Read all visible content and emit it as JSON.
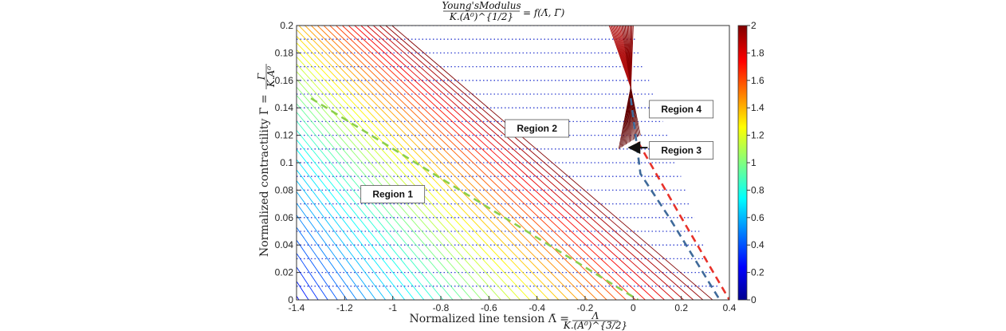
{
  "chart_data": {
    "type": "line",
    "title": "Young'sModulus / K.(A⁰)^{1/2} = f(Λ̄, Γ̄)",
    "title_parts": {
      "numerator": "Young'sModulus",
      "denominator": "K.(A⁰)^{1/2}",
      "rhs": "= f(Λ̄, Γ̄)"
    },
    "xlabel": "Normalized line tension  Λ̄ = Λ / K.(A⁰)^{3/2}",
    "xlabel_parts": {
      "text": "Normalized line tension  Λ̄ =",
      "numerator": "Λ",
      "denominator": "K.(A⁰)^{3/2}"
    },
    "ylabel": "Normalized contractility  Γ̄ = Γ / K.A⁰",
    "ylabel_parts": {
      "text": "Normalized contractility  Γ̄ =",
      "numerator": "Γ",
      "denominator": "K.A⁰"
    },
    "xlim": [
      -1.4,
      0.4
    ],
    "ylim": [
      0,
      0.2
    ],
    "xticks": [
      -1.4,
      -1.2,
      -1,
      -0.8,
      -0.6,
      -0.4,
      -0.2,
      0,
      0.2,
      0.4
    ],
    "xtick_labels": [
      "-1.4",
      "-1.2",
      "-1",
      "-0.8",
      "-0.6",
      "-0.4",
      "-0.2",
      "0",
      "0.2",
      "0.4"
    ],
    "yticks": [
      0,
      0.02,
      0.04,
      0.06,
      0.08,
      0.1,
      0.12,
      0.14,
      0.16,
      0.18,
      0.2
    ],
    "ytick_labels": [
      "0",
      "0.02",
      "0.04",
      "0.06",
      "0.08",
      "0.1",
      "0.12",
      "0.14",
      "0.16",
      "0.18",
      "0.2"
    ],
    "grid": false,
    "colorbar": {
      "min": 0,
      "max": 2,
      "ticks": [
        0,
        0.2,
        0.4,
        0.6,
        0.8,
        1,
        1.2,
        1.4,
        1.6,
        1.8,
        2
      ],
      "tick_labels": [
        "0",
        "0.2",
        "0.4",
        "0.6",
        "0.8",
        "1",
        "1.2",
        "1.4",
        "1.6",
        "1.8",
        "2"
      ],
      "colormap": "jet"
    },
    "boundaries": [
      {
        "style": "dashed",
        "color": "#8ccf4a",
        "points": [
          [
            -1.34,
            0.147
          ],
          [
            0.02,
            0.0
          ]
        ]
      },
      {
        "style": "dashed",
        "color": "#3f6a9a",
        "points": [
          [
            -0.01,
            0.147
          ],
          [
            0.03,
            0.092
          ],
          [
            0.15,
            0.06
          ],
          [
            0.36,
            0.0
          ]
        ]
      },
      {
        "style": "dashed",
        "color": "#e8322a",
        "points": [
          [
            0.02,
            0.115
          ],
          [
            0.2,
            0.06
          ],
          [
            0.4,
            0.0
          ]
        ]
      }
    ],
    "dotted_levels": [
      0.01,
      0.02,
      0.03,
      0.04,
      0.05,
      0.06,
      0.07,
      0.08,
      0.09,
      0.1,
      0.11,
      0.12,
      0.13,
      0.14,
      0.15,
      0.16,
      0.17,
      0.18,
      0.19,
      0.2
    ],
    "contour_count": 48,
    "regions": [
      {
        "label": "Region 1",
        "x": -1.0,
        "y": 0.077
      },
      {
        "label": "Region 2",
        "x": -0.4,
        "y": 0.125
      },
      {
        "label": "Region 3",
        "x": 0.2,
        "y": 0.109
      },
      {
        "label": "Region 4",
        "x": 0.2,
        "y": 0.139
      }
    ],
    "arrow": {
      "from": [
        0.06,
        0.111
      ],
      "to": [
        -0.01,
        0.111
      ]
    }
  }
}
